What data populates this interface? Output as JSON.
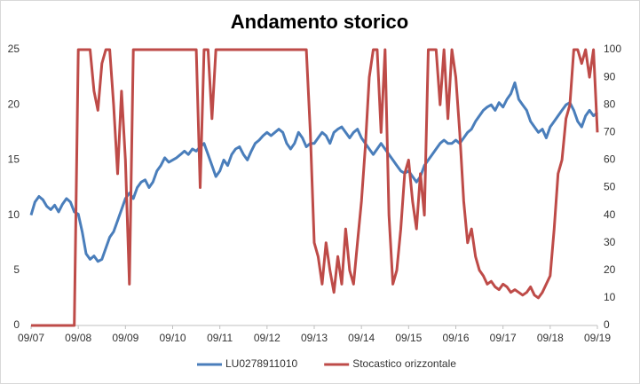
{
  "chart_data": {
    "type": "line",
    "title": "Andamento storico",
    "legend": "bottom",
    "x": [
      "09/07",
      null,
      null,
      null,
      null,
      null,
      null,
      null,
      null,
      null,
      null,
      null,
      "09/08",
      null,
      null,
      null,
      null,
      null,
      null,
      null,
      null,
      null,
      null,
      null,
      "09/09",
      null,
      null,
      null,
      null,
      null,
      null,
      null,
      null,
      null,
      null,
      null,
      "09/10",
      null,
      null,
      null,
      null,
      null,
      null,
      null,
      null,
      null,
      null,
      null,
      "09/11",
      null,
      null,
      null,
      null,
      null,
      null,
      null,
      null,
      null,
      null,
      null,
      "09/12",
      null,
      null,
      null,
      null,
      null,
      null,
      null,
      null,
      null,
      null,
      null,
      "09/13",
      null,
      null,
      null,
      null,
      null,
      null,
      null,
      null,
      null,
      null,
      null,
      "09/14",
      null,
      null,
      null,
      null,
      null,
      null,
      null,
      null,
      null,
      null,
      null,
      "09/15",
      null,
      null,
      null,
      null,
      null,
      null,
      null,
      null,
      null,
      null,
      null,
      "09/16",
      null,
      null,
      null,
      null,
      null,
      null,
      null,
      null,
      null,
      null,
      null,
      "09/17",
      null,
      null,
      null,
      null,
      null,
      null,
      null,
      null,
      null,
      null,
      null,
      "09/18",
      null,
      null,
      null,
      null,
      null,
      null,
      null,
      null,
      null,
      null,
      null,
      "09/19"
    ],
    "ylim": [
      0,
      25
    ],
    "yticks": [
      0,
      5,
      10,
      15,
      20,
      25
    ],
    "y2lim": [
      0,
      100
    ],
    "y2ticks": [
      0,
      10,
      20,
      30,
      40,
      50,
      60,
      70,
      80,
      90,
      100
    ],
    "series": [
      {
        "name": "LU0278911010",
        "color": "#4a7ebb",
        "values": [
          10,
          11.2,
          11.7,
          11.4,
          10.8,
          10.5,
          10.9,
          10.3,
          11,
          11.5,
          11.2,
          10.3,
          10.1,
          8.5,
          6.5,
          6,
          6.3,
          5.8,
          6,
          7,
          8,
          8.5,
          9.5,
          10.5,
          11.5,
          12,
          11.5,
          12.5,
          13,
          13.2,
          12.5,
          13,
          14,
          14.5,
          15.2,
          14.8,
          15,
          15.2,
          15.5,
          15.8,
          15.5,
          16,
          15.8,
          16.2,
          16.5,
          15.5,
          14.5,
          13.5,
          14,
          15,
          14.5,
          15.5,
          16,
          16.2,
          15.5,
          15,
          15.8,
          16.5,
          16.8,
          17.2,
          17.5,
          17.2,
          17.5,
          17.8,
          17.5,
          16.5,
          16,
          16.5,
          17.5,
          17,
          16.2,
          16.5,
          16.5,
          17,
          17.5,
          17.2,
          16.5,
          17.5,
          17.8,
          18,
          17.5,
          17,
          17.5,
          17.8,
          17,
          16.5,
          16,
          15.5,
          16,
          16.5,
          16,
          15.5,
          15,
          14.5,
          14,
          13.8,
          14,
          13.5,
          13,
          13.5,
          14.5,
          15,
          15.5,
          16,
          16.5,
          16.8,
          16.5,
          16.5,
          16.8,
          16.5,
          17,
          17.5,
          17.8,
          18.5,
          19,
          19.5,
          19.8,
          20,
          19.5,
          20.2,
          19.8,
          20.5,
          21,
          22,
          20.5,
          20,
          19.5,
          18.5,
          18,
          17.5,
          17.8,
          17,
          18,
          18.5,
          19,
          19.5,
          20,
          20.2,
          19.5,
          18.5,
          18,
          19,
          19.5,
          19,
          19.3
        ]
      },
      {
        "name": "Stocastico orizzontale",
        "color": "#be4b48",
        "axis": "y2",
        "values": [
          0,
          0,
          0,
          0,
          0,
          0,
          0,
          0,
          0,
          0,
          0,
          0,
          100,
          100,
          100,
          100,
          85,
          78,
          95,
          100,
          100,
          80,
          55,
          85,
          60,
          15,
          100,
          100,
          100,
          100,
          100,
          100,
          100,
          100,
          100,
          100,
          100,
          100,
          100,
          100,
          100,
          100,
          100,
          50,
          100,
          100,
          75,
          100,
          100,
          100,
          100,
          100,
          100,
          100,
          100,
          100,
          100,
          100,
          100,
          100,
          100,
          100,
          100,
          100,
          100,
          100,
          100,
          100,
          100,
          100,
          100,
          70,
          30,
          25,
          15,
          30,
          20,
          12,
          25,
          15,
          35,
          20,
          15,
          30,
          45,
          65,
          90,
          100,
          100,
          70,
          100,
          40,
          15,
          20,
          35,
          55,
          60,
          45,
          35,
          55,
          40,
          100,
          100,
          100,
          80,
          100,
          75,
          100,
          90,
          70,
          45,
          30,
          35,
          25,
          20,
          18,
          15,
          16,
          14,
          13,
          15,
          14,
          12,
          13,
          12,
          11,
          12,
          14,
          11,
          10,
          12,
          15,
          18,
          35,
          55,
          60,
          75,
          80,
          100,
          100,
          95,
          100,
          90,
          100,
          70
        ]
      }
    ]
  }
}
